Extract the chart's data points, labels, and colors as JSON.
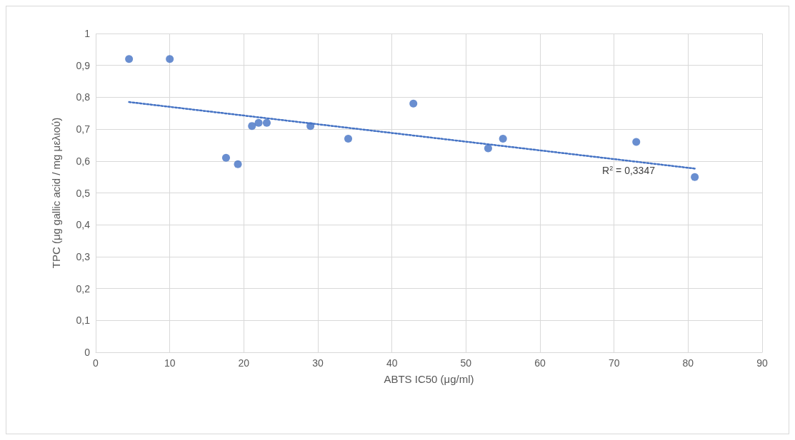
{
  "chart_data": {
    "type": "scatter",
    "xlabel": "ABTS IC50 (μg/ml)",
    "ylabel": "TPC (μg gallic acid / mg μελιού)",
    "xlim": [
      0,
      90
    ],
    "xticks": [
      0,
      10,
      20,
      30,
      40,
      50,
      60,
      70,
      80,
      90
    ],
    "ylim": [
      0,
      1
    ],
    "yticks": [
      0,
      {
        "value": 0.1,
        "label": "0,1"
      },
      {
        "value": 0.2,
        "label": "0,2"
      },
      {
        "value": 0.3,
        "label": "0,3"
      },
      {
        "value": 0.4,
        "label": "0,4"
      },
      {
        "value": 0.5,
        "label": "0,5"
      },
      {
        "value": 0.6,
        "label": "0,6"
      },
      {
        "value": 0.7,
        "label": "0,7"
      },
      {
        "value": 0.8,
        "label": "0,8"
      },
      {
        "value": 0.9,
        "label": "0,9"
      },
      1
    ],
    "grid": true,
    "marker": "circle",
    "series": [
      {
        "color": "#4472c4",
        "x": [
          4.5,
          10,
          17.6,
          19.2,
          21.1,
          22,
          23.1,
          29,
          34.1,
          42.9,
          53,
          55,
          73,
          80.9
        ],
        "values": [
          0.92,
          0.92,
          0.61,
          0.59,
          0.71,
          0.72,
          0.72,
          0.71,
          0.67,
          0.78,
          0.64,
          0.67,
          0.66,
          0.55
        ]
      },
      {
        "type": "line",
        "color": "#4472c4",
        "line_style": "dotted",
        "marker": "none",
        "x": [
          4.5,
          81
        ],
        "values": [
          0.785,
          0.576
        ]
      }
    ],
    "annotations": [
      "R$^{2}$ = 0,3347"
    ]
  }
}
